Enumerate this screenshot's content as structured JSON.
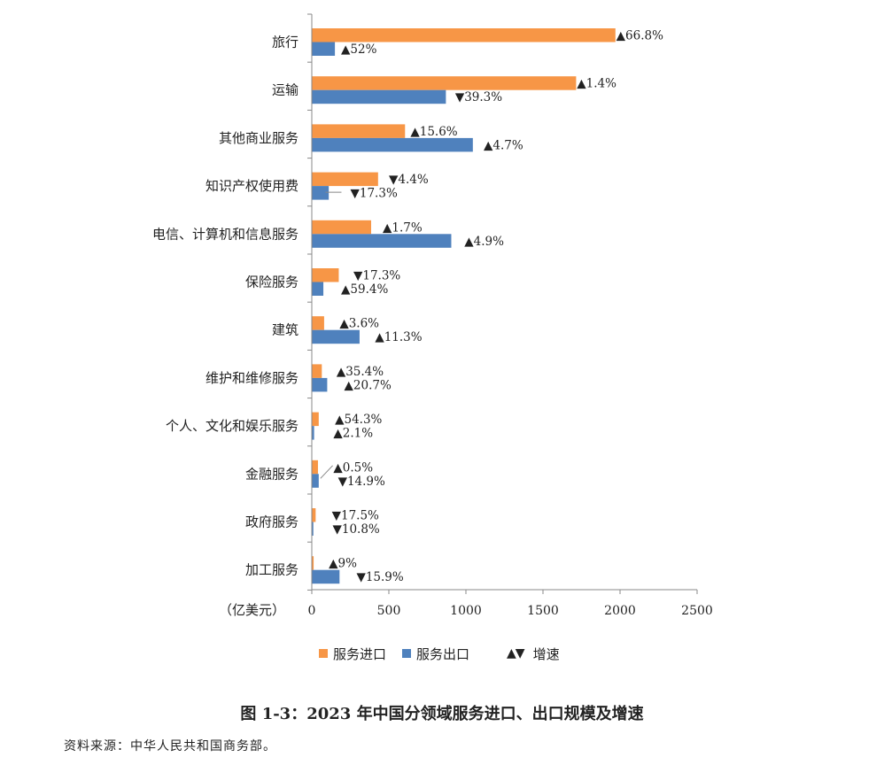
{
  "chart_data": {
    "type": "bar",
    "orientation": "horizontal",
    "categories": [
      "旅行",
      "运输",
      "其他商业服务",
      "知识产权使用费",
      "电信、计算机和信息服务",
      "保险服务",
      "建筑",
      "维护和维修服务",
      "个人、文化和娱乐服务",
      "金融服务",
      "政府服务",
      "加工服务"
    ],
    "series": [
      {
        "name": "服务进口",
        "color": "#F79646",
        "values": [
          1970,
          1715,
          605,
          430,
          385,
          175,
          80,
          65,
          45,
          40,
          25,
          12
        ],
        "growth": [
          "▲66.8%",
          "▲1.4%",
          "▲15.6%",
          "▼4.4%",
          "▲1.7%",
          "▼17.3%",
          "▲3.6%",
          "▲35.4%",
          "▲54.3%",
          "▲0.5%",
          "▼17.5%",
          "▲9%"
        ]
      },
      {
        "name": "服务出口",
        "color": "#4F81BD",
        "values": [
          150,
          870,
          1045,
          110,
          905,
          75,
          310,
          100,
          15,
          45,
          10,
          180
        ],
        "growth": [
          "▲52%",
          "▼39.3%",
          "▲4.7%",
          "▼17.3%",
          "▲4.9%",
          "▲59.4%",
          "▲11.3%",
          "▲20.7%",
          "▲2.1%",
          "▼14.9%",
          "▼10.8%",
          "▼15.9%"
        ]
      }
    ],
    "xlim": [
      0,
      2500
    ],
    "xticks": [
      "0",
      "500",
      "1000",
      "1500",
      "2000",
      "2500"
    ],
    "unit_label": "（亿美元）",
    "grid": false,
    "legend_position": "bottom"
  },
  "legend": {
    "import_label": "服务进口",
    "export_label": "服务出口",
    "growth_glyphs": "▲▼",
    "growth_label": "增速"
  },
  "caption": "图 1-3：2023 年中国分领域服务进口、出口规模及增速",
  "source": "资料来源：中华人民共和国商务部。"
}
